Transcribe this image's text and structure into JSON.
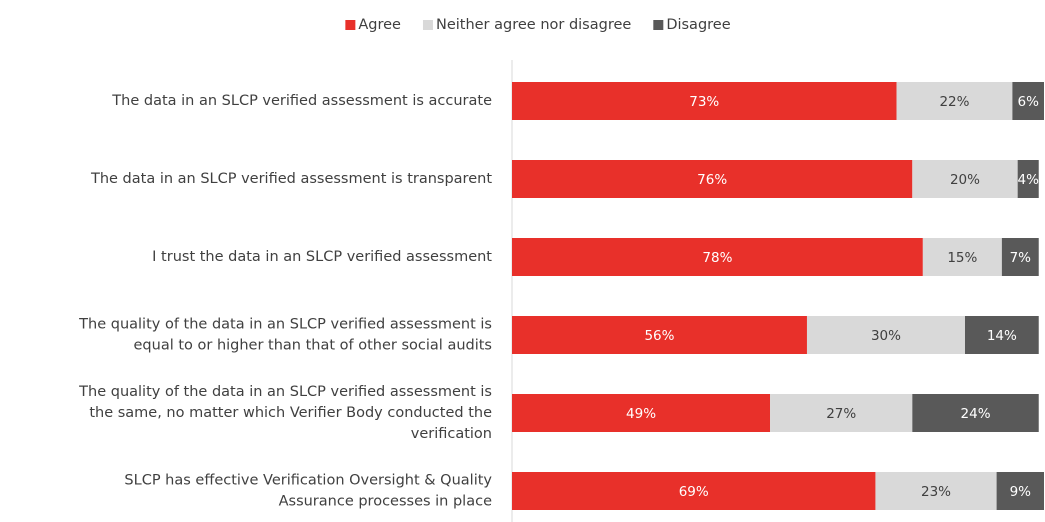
{
  "chart_data": {
    "type": "stacked-bar-horizontal",
    "categories": [
      [
        "The data in an SLCP verified assessment is accurate"
      ],
      [
        "The data in an SLCP verified assessment is transparent"
      ],
      [
        "I trust the data in an SLCP verified assessment"
      ],
      [
        "The quality of the data in an SLCP verified assessment is",
        "equal to or higher than that of other social audits"
      ],
      [
        "The quality of the data in an SLCP verified assessment is",
        "the same, no matter which Verifier Body conducted the",
        "verification"
      ],
      [
        "SLCP has effective Verification Oversight & Quality",
        "Assurance processes in place"
      ]
    ],
    "series": [
      {
        "name": "Agree",
        "color": "#e8302a",
        "label_color": "#ffffff",
        "values": [
          73,
          76,
          78,
          56,
          49,
          69
        ],
        "value_labels": [
          "73%",
          "76%",
          "78%",
          "56%",
          "49%",
          "69%"
        ]
      },
      {
        "name": "Neither agree nor disagree",
        "color": "#d9d9d9",
        "label_color": "#404040",
        "values": [
          22,
          20,
          15,
          30,
          27,
          23
        ],
        "value_labels": [
          "22%",
          "20%",
          "15%",
          "30%",
          "27%",
          "23%"
        ]
      },
      {
        "name": "Disagree",
        "color": "#595959",
        "label_color": "#ffffff",
        "values": [
          6,
          4,
          7,
          14,
          24,
          9
        ],
        "value_labels": [
          "6%",
          "4%",
          "7%",
          "14%",
          "24%",
          "9%"
        ]
      }
    ],
    "xlim": [
      0,
      101
    ],
    "legend": "top"
  }
}
